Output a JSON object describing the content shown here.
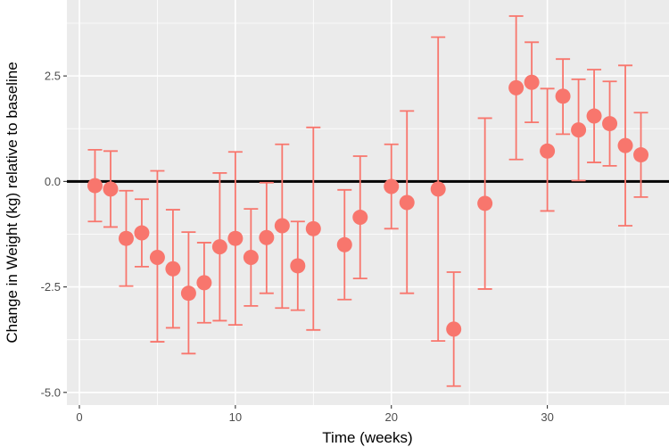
{
  "chart_data": {
    "type": "scatter",
    "title": "",
    "xlabel": "Time (weeks)",
    "ylabel": "Change in Weight (kg) relative to baseline",
    "xlim": [
      -0.8,
      37.8
    ],
    "ylim": [
      -5.3,
      4.3
    ],
    "x_ticks": [
      0,
      10,
      20,
      30
    ],
    "x_tick_labels": [
      "0",
      "10",
      "20",
      "30"
    ],
    "y_ticks": [
      2.5,
      0.0,
      -2.5,
      -5.0
    ],
    "y_tick_labels": [
      "2.5",
      "0.0",
      "-2.5",
      "-5.0"
    ],
    "reference_line_y": 0,
    "grid": true,
    "point_color": "#F8766D",
    "panel_background": "#EBEBEB",
    "points": [
      {
        "x": 1,
        "y": -0.1,
        "lower": -0.95,
        "upper": 0.75
      },
      {
        "x": 2,
        "y": -0.18,
        "lower": -1.08,
        "upper": 0.72
      },
      {
        "x": 3,
        "y": -1.35,
        "lower": -2.48,
        "upper": -0.22
      },
      {
        "x": 4,
        "y": -1.22,
        "lower": -2.02,
        "upper": -0.42
      },
      {
        "x": 5,
        "y": -1.8,
        "lower": -3.8,
        "upper": 0.25
      },
      {
        "x": 6,
        "y": -2.07,
        "lower": -3.47,
        "upper": -0.67
      },
      {
        "x": 7,
        "y": -2.65,
        "lower": -4.08,
        "upper": -1.2
      },
      {
        "x": 8,
        "y": -2.4,
        "lower": -3.35,
        "upper": -1.45
      },
      {
        "x": 9,
        "y": -1.55,
        "lower": -3.3,
        "upper": 0.2
      },
      {
        "x": 10,
        "y": -1.35,
        "lower": -3.4,
        "upper": 0.7
      },
      {
        "x": 11,
        "y": -1.8,
        "lower": -2.95,
        "upper": -0.65
      },
      {
        "x": 12,
        "y": -1.33,
        "lower": -2.65,
        "upper": -0.03
      },
      {
        "x": 13,
        "y": -1.05,
        "lower": -3.0,
        "upper": 0.88
      },
      {
        "x": 14,
        "y": -2.0,
        "lower": -3.05,
        "upper": -0.95
      },
      {
        "x": 15,
        "y": -1.12,
        "lower": -3.52,
        "upper": 1.28
      },
      {
        "x": 17,
        "y": -1.5,
        "lower": -2.8,
        "upper": -0.2
      },
      {
        "x": 18,
        "y": -0.85,
        "lower": -2.3,
        "upper": 0.6
      },
      {
        "x": 20,
        "y": -0.12,
        "lower": -1.12,
        "upper": 0.88
      },
      {
        "x": 21,
        "y": -0.5,
        "lower": -2.65,
        "upper": 1.67
      },
      {
        "x": 23,
        "y": -0.18,
        "lower": -3.78,
        "upper": 3.42
      },
      {
        "x": 24,
        "y": -3.5,
        "lower": -4.85,
        "upper": -2.15
      },
      {
        "x": 26,
        "y": -0.52,
        "lower": -2.55,
        "upper": 1.5
      },
      {
        "x": 28,
        "y": 2.22,
        "lower": 0.52,
        "upper": 3.92
      },
      {
        "x": 29,
        "y": 2.35,
        "lower": 1.4,
        "upper": 3.3
      },
      {
        "x": 30,
        "y": 0.72,
        "lower": -0.7,
        "upper": 2.2
      },
      {
        "x": 31,
        "y": 2.02,
        "lower": 1.12,
        "upper": 2.9
      },
      {
        "x": 32,
        "y": 1.22,
        "lower": 0.02,
        "upper": 2.42
      },
      {
        "x": 33,
        "y": 1.55,
        "lower": 0.45,
        "upper": 2.65
      },
      {
        "x": 34,
        "y": 1.37,
        "lower": 0.37,
        "upper": 2.37
      },
      {
        "x": 35,
        "y": 0.85,
        "lower": -1.05,
        "upper": 2.75
      },
      {
        "x": 36,
        "y": 0.63,
        "lower": -0.37,
        "upper": 1.63
      }
    ]
  }
}
